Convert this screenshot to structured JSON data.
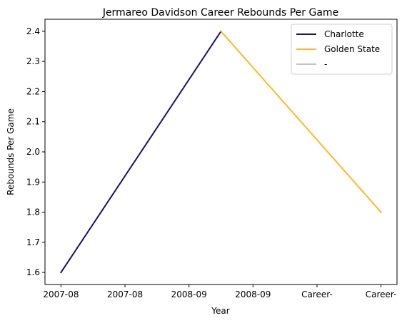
{
  "chart_data": {
    "type": "line",
    "title": "Jermareo Davidson Career Rebounds Per Game",
    "xlabel": "Year",
    "ylabel": "Rebounds Per Game",
    "categories": [
      "2007-08",
      "2007-08",
      "2008-09",
      "2008-09",
      "Career-",
      "Career-"
    ],
    "ylim": [
      1.56,
      2.44
    ],
    "yticks": [
      1.6,
      1.7,
      1.8,
      1.9,
      2.0,
      2.1,
      2.2,
      2.3,
      2.4
    ],
    "grid": false,
    "legend_position": "top-right",
    "series": [
      {
        "name": "Charlotte",
        "color": "#1d1160",
        "points": [
          [
            0,
            1.6
          ],
          [
            2.5,
            2.4
          ]
        ]
      },
      {
        "name": "Golden State",
        "color": "#fdb927",
        "points": [
          [
            2.5,
            2.4
          ],
          [
            5,
            1.8
          ]
        ]
      },
      {
        "name": "-",
        "color": "#c4c4c4",
        "points": []
      }
    ]
  }
}
